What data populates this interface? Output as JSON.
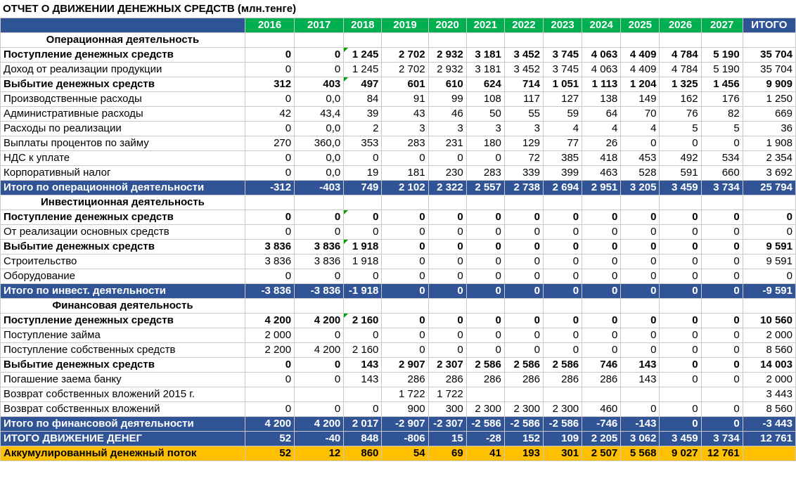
{
  "title": "ОТЧЕТ О ДВИЖЕНИИ ДЕНЕЖНЫХ СРЕДСТВ (млн.тенге)",
  "columns": [
    "2016",
    "2017",
    "2018",
    "2019",
    "2020",
    "2021",
    "2022",
    "2023",
    "2024",
    "2025",
    "2026",
    "2027",
    "ИТОГО"
  ],
  "rows": [
    {
      "type": "section",
      "label": "Операционная деятельность"
    },
    {
      "type": "bold",
      "label": "Поступление денежных средств",
      "values": [
        "0",
        "0",
        "1 245",
        "2 702",
        "2 932",
        "3 181",
        "3 452",
        "3 745",
        "4 063",
        "4 409",
        "4 784",
        "5 190",
        "35 704"
      ]
    },
    {
      "type": "normal",
      "label": "Доход от реализации продукции",
      "values": [
        "0",
        "0",
        "1 245",
        "2 702",
        "2 932",
        "3 181",
        "3 452",
        "3 745",
        "4 063",
        "4 409",
        "4 784",
        "5 190",
        "35 704"
      ]
    },
    {
      "type": "bold",
      "label": "Выбытие денежных средств",
      "values": [
        "312",
        "403",
        "497",
        "601",
        "610",
        "624",
        "714",
        "1 051",
        "1 113",
        "1 204",
        "1 325",
        "1 456",
        "9 909"
      ]
    },
    {
      "type": "normal",
      "label": "Производственные расходы",
      "values": [
        "0",
        "0,0",
        "84",
        "91",
        "99",
        "108",
        "117",
        "127",
        "138",
        "149",
        "162",
        "176",
        "1 250"
      ]
    },
    {
      "type": "normal",
      "label": "Административные расходы",
      "values": [
        "42",
        "43,4",
        "39",
        "43",
        "46",
        "50",
        "55",
        "59",
        "64",
        "70",
        "76",
        "82",
        "669"
      ]
    },
    {
      "type": "normal",
      "label": "Расходы по реализации",
      "values": [
        "0",
        "0,0",
        "2",
        "3",
        "3",
        "3",
        "3",
        "4",
        "4",
        "4",
        "5",
        "5",
        "36"
      ]
    },
    {
      "type": "normal",
      "label": "Выплаты процентов по займу",
      "values": [
        "270",
        "360,0",
        "353",
        "283",
        "231",
        "180",
        "129",
        "77",
        "26",
        "0",
        "0",
        "0",
        "1 908"
      ]
    },
    {
      "type": "normal",
      "label": "НДС к уплате",
      "values": [
        "0",
        "0,0",
        "0",
        "0",
        "0",
        "0",
        "72",
        "385",
        "418",
        "453",
        "492",
        "534",
        "2 354"
      ]
    },
    {
      "type": "normal",
      "label": "Корпоративный налог",
      "values": [
        "0",
        "0,0",
        "19",
        "181",
        "230",
        "283",
        "339",
        "399",
        "463",
        "528",
        "591",
        "660",
        "3 692"
      ]
    },
    {
      "type": "total",
      "label": "Итого по операционной деятельности",
      "values": [
        "-312",
        "-403",
        "749",
        "2 102",
        "2 322",
        "2 557",
        "2 738",
        "2 694",
        "2 951",
        "3 205",
        "3 459",
        "3 734",
        "25 794"
      ]
    },
    {
      "type": "section",
      "label": "Инвестиционная деятельность"
    },
    {
      "type": "bold",
      "label": "Поступление денежных средств",
      "values": [
        "0",
        "0",
        "0",
        "0",
        "0",
        "0",
        "0",
        "0",
        "0",
        "0",
        "0",
        "0",
        "0"
      ]
    },
    {
      "type": "normal",
      "label": "От реализации основных средств",
      "values": [
        "0",
        "0",
        "0",
        "0",
        "0",
        "0",
        "0",
        "0",
        "0",
        "0",
        "0",
        "0",
        "0"
      ]
    },
    {
      "type": "bold",
      "label": "Выбытие денежных средств",
      "values": [
        "3 836",
        "3 836",
        "1 918",
        "0",
        "0",
        "0",
        "0",
        "0",
        "0",
        "0",
        "0",
        "0",
        "9 591"
      ]
    },
    {
      "type": "normal",
      "label": "Строительство",
      "values": [
        "3 836",
        "3 836",
        "1 918",
        "0",
        "0",
        "0",
        "0",
        "0",
        "0",
        "0",
        "0",
        "0",
        "9 591"
      ]
    },
    {
      "type": "normal",
      "label": "Оборудование",
      "values": [
        "0",
        "0",
        "0",
        "0",
        "0",
        "0",
        "0",
        "0",
        "0",
        "0",
        "0",
        "0",
        "0"
      ]
    },
    {
      "type": "total",
      "label": "Итого по инвест. деятельности",
      "values": [
        "-3 836",
        "-3 836",
        "-1 918",
        "0",
        "0",
        "0",
        "0",
        "0",
        "0",
        "0",
        "0",
        "0",
        "-9 591"
      ]
    },
    {
      "type": "section",
      "label": "Финансовая деятельность"
    },
    {
      "type": "bold",
      "label": "Поступление денежных средств",
      "values": [
        "4 200",
        "4 200",
        "2 160",
        "0",
        "0",
        "0",
        "0",
        "0",
        "0",
        "0",
        "0",
        "0",
        "10 560"
      ]
    },
    {
      "type": "normal",
      "label": "Поступление займа",
      "values": [
        "2 000",
        "0",
        "0",
        "0",
        "0",
        "0",
        "0",
        "0",
        "0",
        "0",
        "0",
        "0",
        "2 000"
      ]
    },
    {
      "type": "normal",
      "label": "Поступление собственных средств",
      "values": [
        "2 200",
        "4 200",
        "2 160",
        "0",
        "0",
        "0",
        "0",
        "0",
        "0",
        "0",
        "0",
        "0",
        "8 560"
      ]
    },
    {
      "type": "bold",
      "label": "Выбытие денежных средств",
      "values": [
        "0",
        "0",
        "143",
        "2 907",
        "2 307",
        "2 586",
        "2 586",
        "2 586",
        "746",
        "143",
        "0",
        "0",
        "14 003"
      ]
    },
    {
      "type": "normal",
      "label": "Погашение  заема банку",
      "values": [
        "0",
        "0",
        "143",
        "286",
        "286",
        "286",
        "286",
        "286",
        "286",
        "143",
        "0",
        "0",
        "2 000"
      ]
    },
    {
      "type": "normal",
      "label": "Возврат собственных вложений 2015 г.",
      "values": [
        "",
        "",
        "",
        "1 722",
        "1 722",
        "",
        "",
        "",
        "",
        "",
        "",
        "",
        "3 443"
      ]
    },
    {
      "type": "normal",
      "label": "Возврат собственных вложений",
      "values": [
        "0",
        "0",
        "0",
        "900",
        "300",
        "2 300",
        "2 300",
        "2 300",
        "460",
        "0",
        "0",
        "0",
        "8 560"
      ]
    },
    {
      "type": "total",
      "label": "Итого по финансовой деятельности",
      "values": [
        "4 200",
        "4 200",
        "2 017",
        "-2 907",
        "-2 307",
        "-2 586",
        "-2 586",
        "-2 586",
        "-746",
        "-143",
        "0",
        "0",
        "-3 443"
      ]
    },
    {
      "type": "grand",
      "label": "ИТОГО ДВИЖЕНИЕ ДЕНЕГ",
      "values": [
        "52",
        "-40",
        "848",
        "-806",
        "15",
        "-28",
        "152",
        "109",
        "2 205",
        "3 062",
        "3 459",
        "3 734",
        "12 761"
      ]
    },
    {
      "type": "accum",
      "label": "Аккумулированный денежный поток",
      "values": [
        "52",
        "12",
        "860",
        "54",
        "69",
        "41",
        "193",
        "301",
        "2 507",
        "5 568",
        "9 027",
        "12 761",
        ""
      ]
    }
  ],
  "colors": {
    "header_year": "#00b050",
    "header_total": "#2f5496",
    "total_row": "#305496",
    "accum_row": "#ffc000",
    "marker": "#00a000"
  }
}
